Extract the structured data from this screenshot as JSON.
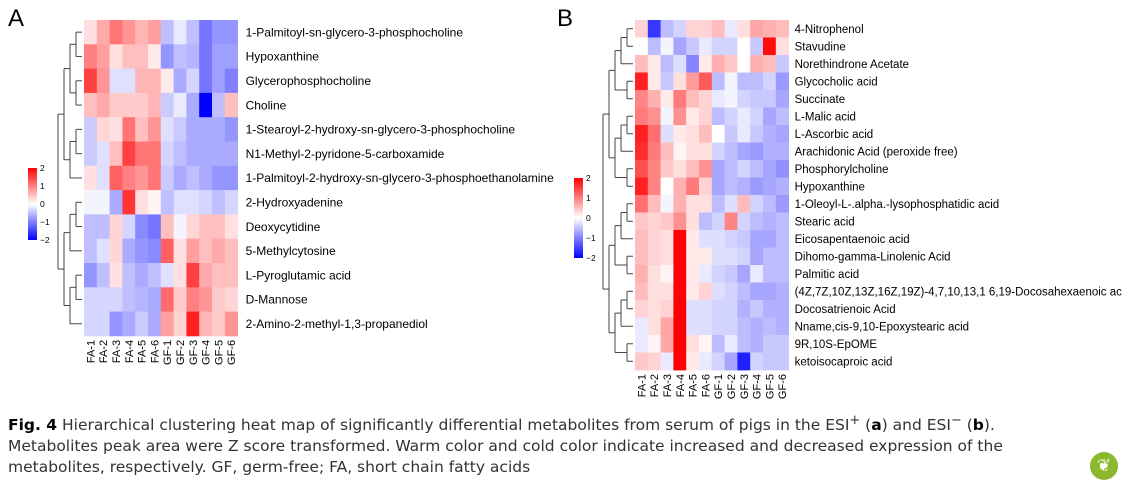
{
  "caption": {
    "fig_label": "Fig. 4",
    "part1": "Hierarchical clustering heat map of significantly differential metabolites from serum of pigs in the ESI",
    "sup_plus": "+",
    "part2": "(",
    "a": "a",
    "part3": ") and ESI",
    "sup_minus": "−",
    "part4": "(",
    "b": "b",
    "part5": "). Metabolites peak area were Z score transformed. Warm color and cold color indicate increased and decreased expression of the metabolites, respectively. GF, germ-free; FA, short chain fatty acids"
  },
  "badge": {
    "icon": "leaf-logo-icon",
    "color": "#8cb82b"
  },
  "colors": {
    "high": "#ff0000",
    "mid": "#ffffff",
    "low": "#0000ff"
  },
  "chart_data": [
    {
      "type": "heatmap",
      "panel": "A",
      "columns": [
        "FA-1",
        "FA-2",
        "FA-3",
        "FA-4",
        "FA-5",
        "FA-6",
        "GF-1",
        "GF-2",
        "GF-3",
        "GF-4",
        "GF-5",
        "GF-6"
      ],
      "rows": [
        "1-Palmitoyl-sn-glycero-3-phosphocholine",
        "Hypoxanthine",
        "Glycerophosphocholine",
        "Choline",
        "1-Stearoyl-2-hydroxy-sn-glycero-3-phosphocholine",
        "N1-Methyl-2-pyridone-5-carboxamide",
        "1-Palmitoyl-2-hydroxy-sn-glycero-3-phosphoethanolamine",
        "2-Hydroxyadenine",
        "Deoxycytidine",
        "5-Methylcytosine",
        "L-Pyroglutamic acid",
        "D-Mannose",
        "2-Amino-2-methyl-1,3-propanediol"
      ],
      "values": [
        [
          0.3,
          0.8,
          1.3,
          1.0,
          0.7,
          0.9,
          -0.6,
          -0.2,
          -0.6,
          -1.3,
          -1.0,
          -1.0
        ],
        [
          1.2,
          0.9,
          0.3,
          0.6,
          0.6,
          0.2,
          -1.0,
          -0.6,
          -0.7,
          -1.3,
          -0.9,
          -0.9
        ],
        [
          1.8,
          1.0,
          -0.3,
          -0.3,
          0.7,
          0.7,
          0.2,
          -0.8,
          -0.4,
          -1.3,
          -0.9,
          -1.2
        ],
        [
          0.6,
          0.8,
          0.5,
          0.5,
          0.5,
          0.7,
          -0.5,
          -0.2,
          -0.8,
          -2.4,
          -0.6,
          0.6
        ],
        [
          -0.5,
          0.4,
          0.3,
          1.3,
          0.6,
          1.0,
          -0.3,
          -0.5,
          -0.8,
          -0.8,
          -0.8,
          -1.0
        ],
        [
          -0.5,
          -0.3,
          0.6,
          1.8,
          1.3,
          1.3,
          -0.4,
          -0.6,
          -0.8,
          -0.8,
          -0.8,
          -0.8
        ],
        [
          0.3,
          -0.3,
          1.5,
          1.2,
          1.0,
          1.3,
          -0.5,
          -0.8,
          -0.6,
          -0.8,
          -1.0,
          -1.0
        ],
        [
          -0.1,
          -0.1,
          -0.8,
          1.9,
          0.3,
          0.1,
          -0.6,
          -0.3,
          -0.3,
          -0.4,
          -0.6,
          -0.4
        ],
        [
          -0.6,
          -0.6,
          0.4,
          -0.4,
          -1.1,
          -1.3,
          0.6,
          -0.1,
          0.4,
          0.6,
          0.6,
          0.3
        ],
        [
          -0.6,
          -0.3,
          0.4,
          -0.8,
          -1.0,
          -1.1,
          1.5,
          0.3,
          0.9,
          0.6,
          0.8,
          0.6
        ],
        [
          -1.0,
          -0.6,
          0.3,
          -0.6,
          -0.8,
          -0.6,
          -0.3,
          0.3,
          1.8,
          0.8,
          0.6,
          0.6
        ],
        [
          -0.4,
          -0.4,
          -0.4,
          -0.6,
          -0.7,
          -0.8,
          1.4,
          0.5,
          1.2,
          1.0,
          0.5,
          0.4
        ],
        [
          -0.4,
          -0.4,
          -1.0,
          -0.8,
          -0.5,
          -0.8,
          0.9,
          0.4,
          2.1,
          0.7,
          0.5,
          1.0
        ]
      ],
      "colorbar_ticks": [
        "2",
        "1",
        "0",
        "−1",
        "−2"
      ],
      "vmin": -2.4,
      "vmax": 2.1
    },
    {
      "type": "heatmap",
      "panel": "B",
      "columns": [
        "FA-1",
        "FA-2",
        "FA-3",
        "FA-4",
        "FA-5",
        "FA-6",
        "GF-1",
        "GF-2",
        "GF-3",
        "GF-4",
        "GF-5",
        "GF-6"
      ],
      "rows": [
        "4-Nitrophenol",
        "Stavudine",
        "Norethindrone Acetate",
        "Glycocholic acid",
        "Succinate",
        "L-Malic acid",
        "L-Ascorbic acid",
        "Arachidonic Acid (peroxide free)",
        "Phosphorylcholine",
        "Hypoxanthine",
        "1-Oleoyl-L-.alpha.-lysophosphatidic acid",
        "Stearic acid",
        "Eicosapentaenoic acid",
        "Dihomo-gamma-Linolenic Acid",
        "Palmitic acid",
        "(4Z,7Z,10Z,13Z,16Z,19Z)-4,7,10,13,1 6,19-Docosahexaenoic ac",
        "Docosatrienoic Acid",
        "Nname,cis-9,10-Epoxystearic acid",
        "9R,10S-EpOME",
        "ketoisocaproic acid"
      ],
      "values": [
        [
          0.4,
          -1.8,
          -0.6,
          -0.4,
          0.4,
          0.4,
          0.6,
          -0.2,
          0.3,
          0.8,
          0.7,
          0.6
        ],
        [
          0.0,
          -0.6,
          -0.1,
          -0.8,
          -0.5,
          -0.2,
          -0.4,
          -0.4,
          0.0,
          -0.5,
          2.2,
          0.3
        ],
        [
          0.6,
          0.2,
          -0.6,
          -0.3,
          -1.1,
          0.2,
          0.7,
          0.5,
          0.0,
          0.7,
          0.6,
          -0.5
        ],
        [
          2.0,
          0.2,
          -0.5,
          0.3,
          0.9,
          1.5,
          -0.6,
          -0.1,
          -0.6,
          -0.6,
          -0.4,
          -0.9
        ],
        [
          1.1,
          0.7,
          0.2,
          1.2,
          0.6,
          0.4,
          -0.2,
          -0.1,
          -0.4,
          -0.5,
          -0.5,
          -0.8
        ],
        [
          1.2,
          1.0,
          -0.1,
          1.0,
          0.2,
          0.4,
          -0.6,
          -0.4,
          -0.2,
          -0.4,
          -0.8,
          -0.6
        ],
        [
          2.0,
          1.3,
          -0.3,
          0.2,
          0.3,
          0.6,
          0.0,
          -0.5,
          -0.2,
          -0.5,
          -0.7,
          -0.8
        ],
        [
          1.9,
          1.2,
          0.6,
          0.1,
          0.3,
          0.3,
          -0.4,
          -0.6,
          -0.8,
          -0.9,
          -0.7,
          -0.7
        ],
        [
          1.6,
          1.1,
          0.5,
          0.3,
          0.6,
          1.0,
          -0.8,
          -0.6,
          -0.4,
          -0.6,
          -0.8,
          -1.0
        ],
        [
          2.0,
          1.1,
          0.0,
          0.7,
          1.2,
          0.4,
          -0.8,
          -0.6,
          -0.7,
          -0.9,
          -0.8,
          -0.7
        ],
        [
          1.3,
          0.6,
          -0.1,
          0.7,
          0.3,
          0.3,
          -0.6,
          -0.3,
          0.6,
          -0.4,
          -0.6,
          -0.9
        ],
        [
          0.5,
          0.4,
          0.5,
          1.0,
          0.3,
          -0.6,
          -0.4,
          1.1,
          -0.4,
          -0.6,
          -0.7,
          -0.6
        ],
        [
          0.6,
          0.4,
          0.3,
          2.3,
          0.2,
          -0.3,
          -0.3,
          -0.4,
          -0.5,
          -0.8,
          -0.8,
          -0.6
        ],
        [
          0.6,
          0.4,
          0.3,
          2.3,
          0.2,
          0.2,
          -0.3,
          -0.3,
          -0.4,
          -0.8,
          -0.6,
          -0.6
        ],
        [
          0.7,
          0.3,
          0.1,
          2.3,
          0.2,
          -0.2,
          -0.4,
          -0.5,
          -0.8,
          -0.2,
          -0.6,
          -0.6
        ],
        [
          0.6,
          0.3,
          0.3,
          2.3,
          0.2,
          0.4,
          -0.3,
          -0.4,
          -0.6,
          -0.8,
          -0.8,
          -0.7
        ],
        [
          0.4,
          0.3,
          0.4,
          2.3,
          -0.3,
          -0.3,
          -0.4,
          -0.4,
          -0.7,
          -0.5,
          -0.7,
          -0.7
        ],
        [
          -0.2,
          0.3,
          0.8,
          2.3,
          -0.3,
          -0.3,
          -0.4,
          -0.4,
          -0.6,
          -0.7,
          -0.6,
          -0.7
        ],
        [
          -0.2,
          0.1,
          0.8,
          2.3,
          0.3,
          0.1,
          -0.6,
          -0.2,
          -0.6,
          -0.7,
          -0.5,
          -0.5
        ],
        [
          0.5,
          0.4,
          -0.2,
          2.3,
          0.2,
          -0.2,
          -0.4,
          -0.8,
          -2.0,
          -0.4,
          -0.5,
          -0.5
        ]
      ],
      "colorbar_ticks": [
        "2",
        "1",
        "0",
        "−1",
        "−2"
      ],
      "vmin": -2.0,
      "vmax": 2.3
    }
  ]
}
